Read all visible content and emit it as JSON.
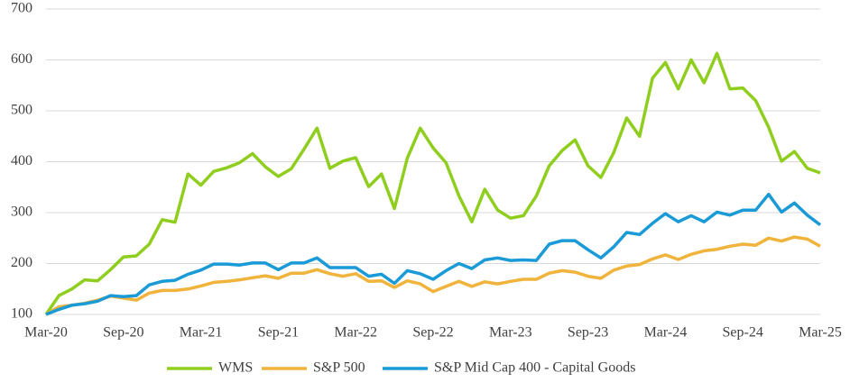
{
  "chart_data": {
    "type": "line",
    "categories": [
      "Mar-20",
      null,
      null,
      null,
      null,
      null,
      "Sep-20",
      null,
      null,
      null,
      null,
      null,
      "Mar-21",
      null,
      null,
      null,
      null,
      null,
      "Sep-21",
      null,
      null,
      null,
      null,
      null,
      "Mar-22",
      null,
      null,
      null,
      null,
      null,
      "Sep-22",
      null,
      null,
      null,
      null,
      null,
      "Mar-23",
      null,
      null,
      null,
      null,
      null,
      "Sep-23",
      null,
      null,
      null,
      null,
      null,
      "Mar-24",
      null,
      null,
      null,
      null,
      null,
      "Sep-24",
      null,
      null,
      null,
      null,
      null,
      "Mar-25"
    ],
    "series": [
      {
        "name": "WMS",
        "color": "#8fce1e",
        "values": [
          100,
          137,
          150,
          168,
          166,
          188,
          213,
          215,
          238,
          286,
          281,
          376,
          354,
          381,
          388,
          398,
          416,
          390,
          371,
          386,
          425,
          466,
          387,
          401,
          408,
          351,
          376,
          308,
          407,
          466,
          427,
          398,
          333,
          282,
          346,
          305,
          289,
          294,
          333,
          392,
          422,
          443,
          392,
          369,
          418,
          486,
          450,
          564,
          595,
          543,
          600,
          555,
          613,
          543,
          545,
          520,
          468,
          401,
          420,
          387,
          378
        ]
      },
      {
        "name": "S&P 500",
        "color": "#f0b33c",
        "values": [
          100,
          115,
          118,
          122,
          128,
          136,
          132,
          128,
          142,
          147,
          147,
          150,
          156,
          163,
          165,
          168,
          172,
          176,
          171,
          181,
          181,
          188,
          180,
          175,
          180,
          165,
          166,
          153,
          166,
          160,
          145,
          155,
          165,
          155,
          164,
          160,
          165,
          169,
          169,
          181,
          186,
          183,
          175,
          171,
          187,
          195,
          198,
          209,
          217,
          208,
          218,
          225,
          228,
          234,
          238,
          236,
          250,
          244,
          252,
          248,
          234
        ]
      },
      {
        "name": "S&P Mid Cap 400 - Capital Goods",
        "color": "#1a9ad6",
        "values": [
          100,
          110,
          118,
          121,
          126,
          137,
          135,
          137,
          158,
          165,
          167,
          179,
          187,
          199,
          199,
          197,
          201,
          201,
          188,
          201,
          201,
          211,
          192,
          192,
          192,
          175,
          179,
          161,
          186,
          180,
          169,
          186,
          200,
          190,
          207,
          211,
          206,
          207,
          206,
          238,
          245,
          245,
          227,
          211,
          233,
          261,
          257,
          279,
          298,
          282,
          294,
          282,
          301,
          295,
          305,
          305,
          336,
          301,
          319,
          295,
          276
        ]
      }
    ],
    "ylim": [
      100,
      700
    ],
    "yticks": [
      100,
      200,
      300,
      400,
      500,
      600,
      700
    ],
    "grid": true,
    "legend": "bottom"
  }
}
